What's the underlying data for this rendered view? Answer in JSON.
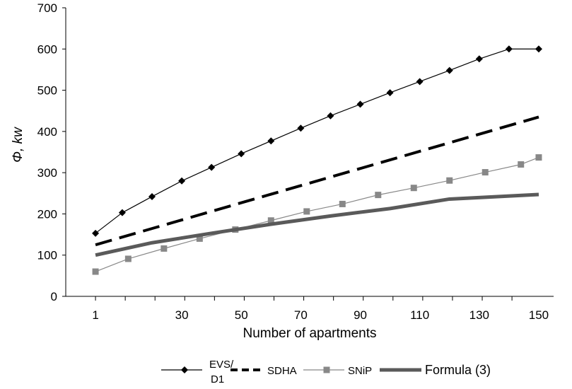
{
  "chart_data": {
    "type": "line",
    "xlabel": "Number of apartments",
    "ylabel": "Φ, kw",
    "ylim": [
      0,
      700
    ],
    "yticks": [
      0,
      100,
      200,
      300,
      400,
      500,
      600,
      700
    ],
    "x_tick_labels": [
      "1",
      "30",
      "50",
      "70",
      "90",
      "110",
      "130",
      "150"
    ],
    "x_tick_values": [
      1,
      30,
      50,
      70,
      90,
      110,
      130,
      150
    ],
    "x_range": [
      -9,
      155
    ],
    "grid": false,
    "legend_position": "bottom",
    "series": [
      {
        "name": "EVS/ D1",
        "legend_lines": [
          "EVS/",
          "D1"
        ],
        "color": "#000000",
        "style": "thin-line-diamond-markers",
        "x": [
          1,
          10,
          20,
          30,
          40,
          50,
          60,
          70,
          80,
          90,
          100,
          110,
          120,
          130,
          140,
          150
        ],
        "values": [
          153,
          203,
          242,
          280,
          313,
          346,
          377,
          408,
          438,
          466,
          494,
          521,
          548,
          576,
          600,
          600
        ]
      },
      {
        "name": "SDHA",
        "color": "#000000",
        "style": "thick-dashed",
        "x": [
          1,
          150
        ],
        "values": [
          125,
          435
        ]
      },
      {
        "name": "SNiP",
        "color": "#888888",
        "style": "thin-line-square-markers",
        "x": [
          1,
          12,
          24,
          36,
          48,
          60,
          72,
          84,
          96,
          108,
          120,
          132,
          144,
          150
        ],
        "values": [
          60,
          91,
          116,
          140,
          162,
          184,
          206,
          224,
          246,
          263,
          281,
          301,
          320,
          337
        ]
      },
      {
        "name": "Formula (3)",
        "color": "#5a5a5a",
        "style": "thick-solid",
        "x": [
          1,
          20,
          40,
          60,
          80,
          100,
          120,
          150
        ],
        "values": [
          100,
          130,
          153,
          175,
          195,
          213,
          236,
          247
        ]
      }
    ]
  }
}
